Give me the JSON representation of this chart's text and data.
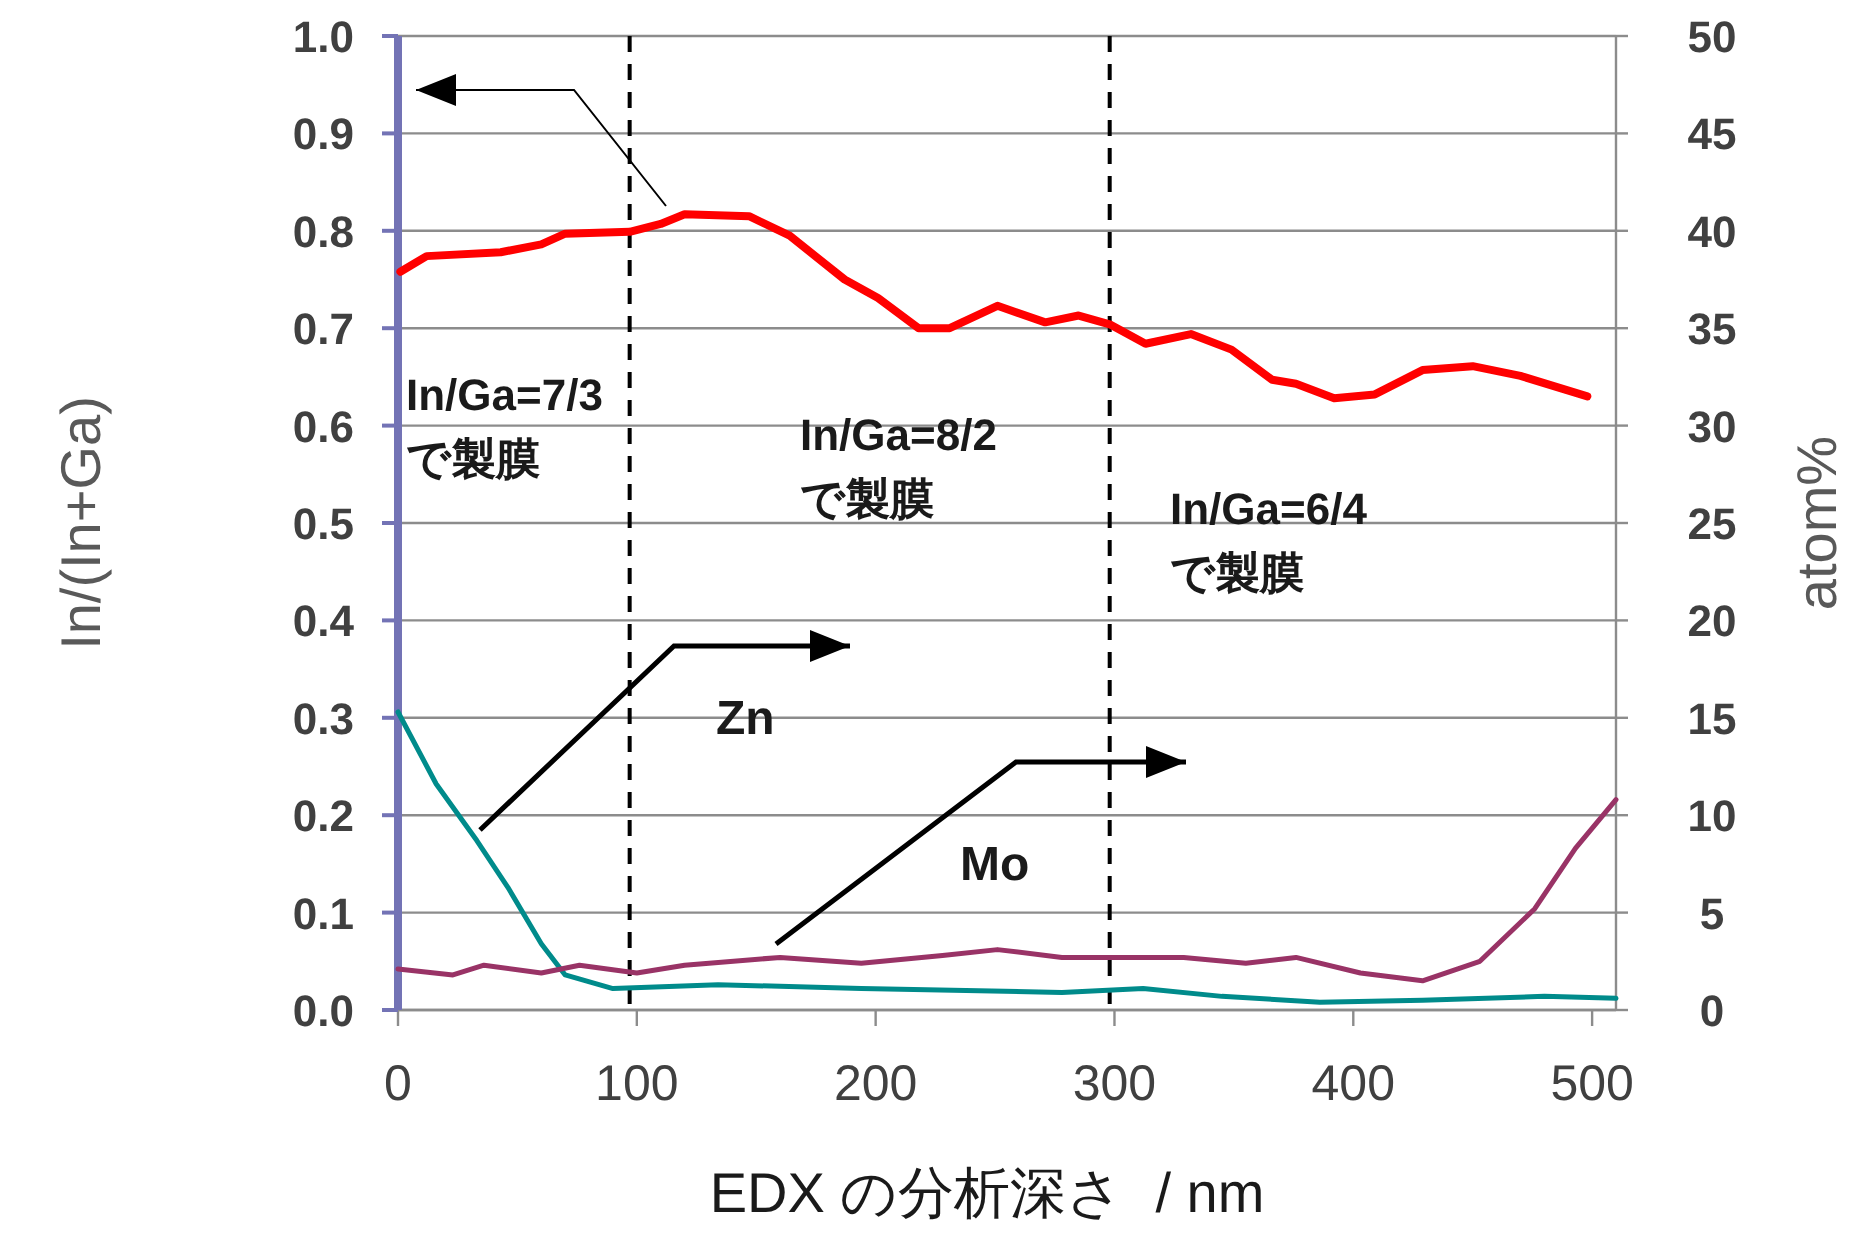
{
  "chart_data": {
    "type": "line",
    "xlabel": "EDX の分析深さ  / nm",
    "ylabel": "In/(In+Ga)",
    "y2label": "atom%",
    "xlim": [
      0,
      510
    ],
    "xticks": [
      0,
      100,
      200,
      300,
      400,
      500
    ],
    "ylim": [
      0,
      1
    ],
    "yticks": [
      {
        "value": 0,
        "label": "0.0"
      },
      0.1,
      0.2,
      0.3,
      0.4,
      0.5,
      0.6,
      0.7,
      0.8,
      0.9,
      {
        "value": 1,
        "label": "1.0"
      }
    ],
    "y2lim": [
      0,
      50
    ],
    "y2ticks": [
      0,
      5,
      10,
      15,
      20,
      25,
      30,
      35,
      40,
      45,
      50
    ],
    "grid": "y",
    "marker": "none",
    "series": [
      {
        "color": "#ff0000",
        "x": [
          1,
          12,
          43,
          60,
          70,
          97,
          110,
          120,
          147,
          164,
          187,
          201,
          218,
          231,
          251,
          271,
          285,
          298,
          313,
          332,
          349,
          366,
          376,
          392,
          409,
          429,
          450,
          470,
          498
        ],
        "values": [
          0.758,
          0.774,
          0.778,
          0.786,
          0.797,
          0.799,
          0.807,
          0.817,
          0.815,
          0.795,
          0.75,
          0.731,
          0.7,
          0.7,
          0.723,
          0.706,
          0.713,
          0.704,
          0.684,
          0.694,
          0.678,
          0.647,
          0.643,
          0.628,
          0.632,
          0.657,
          0.661,
          0.651,
          0.63
        ]
      },
      {
        "color": "#008b8b",
        "axis": "y2",
        "x": [
          0,
          16,
          33,
          46,
          60,
          70,
          90,
          134,
          194,
          278,
          312,
          345,
          386,
          429,
          480,
          510
        ],
        "values": [
          15.3,
          11.6,
          8.7,
          6.3,
          3.4,
          1.8,
          1.1,
          1.3,
          1.1,
          0.9,
          1.1,
          0.7,
          0.4,
          0.5,
          0.7,
          0.6
        ]
      },
      {
        "color": "#993366",
        "axis": "y2",
        "x": [
          0,
          23,
          36,
          60,
          76,
          100,
          120,
          160,
          194,
          228,
          251,
          278,
          329,
          355,
          376,
          403,
          429,
          453,
          476,
          493,
          510
        ],
        "values": [
          2.1,
          1.8,
          2.3,
          1.9,
          2.3,
          1.9,
          2.3,
          2.7,
          2.4,
          2.8,
          3.1,
          2.7,
          2.7,
          2.4,
          2.7,
          1.9,
          1.5,
          2.5,
          5.2,
          8.3,
          10.8
        ]
      }
    ],
    "ref_lines": [
      {
        "axis": "x",
        "value": 97,
        "line_style": "dashed",
        "color": "#000000"
      },
      {
        "axis": "x",
        "value": 298,
        "line_style": "dashed",
        "color": "#000000"
      }
    ],
    "annotations": [
      "In/Ga=7/3\nで製膜",
      "In/Ga=8/2\nで製膜",
      "In/Ga=6/4\nで製膜",
      "Zn",
      "Mo"
    ]
  }
}
